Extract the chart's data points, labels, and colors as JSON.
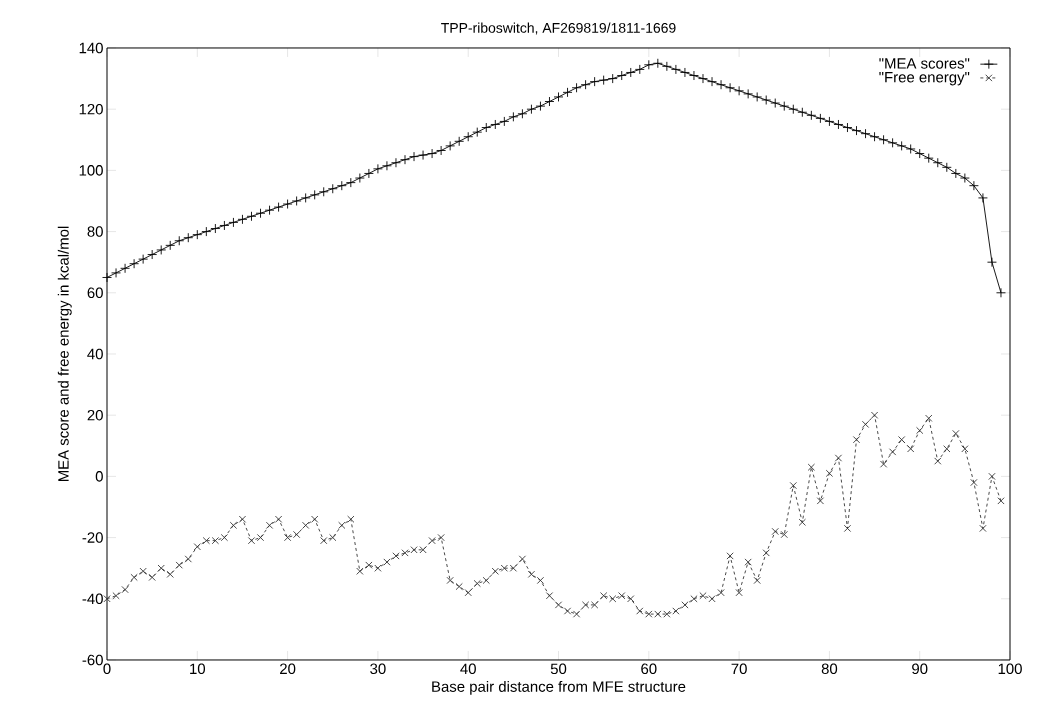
{
  "chart_data": {
    "type": "line",
    "title": "TPP-riboswitch, AF269819/1811-1669",
    "xlabel": "Base pair distance from MFE structure",
    "ylabel": "MEA score and free energy in kcal/mol",
    "x": [
      0,
      1,
      2,
      3,
      4,
      5,
      6,
      7,
      8,
      9,
      10,
      11,
      12,
      13,
      14,
      15,
      16,
      17,
      18,
      19,
      20,
      21,
      22,
      23,
      24,
      25,
      26,
      27,
      28,
      29,
      30,
      31,
      32,
      33,
      34,
      35,
      36,
      37,
      38,
      39,
      40,
      41,
      42,
      43,
      44,
      45,
      46,
      47,
      48,
      49,
      50,
      51,
      52,
      53,
      54,
      55,
      56,
      57,
      58,
      59,
      60,
      61,
      62,
      63,
      64,
      65,
      66,
      67,
      68,
      69,
      70,
      71,
      72,
      73,
      74,
      75,
      76,
      77,
      78,
      79,
      80,
      81,
      82,
      83,
      84,
      85,
      86,
      87,
      88,
      89,
      90,
      91,
      92,
      93,
      94,
      95,
      96,
      97,
      98,
      99
    ],
    "series": [
      {
        "name": "\"MEA scores\"",
        "color": "#000000",
        "marker": "plus",
        "line_style": "solid",
        "values": [
          65,
          66.5,
          68,
          69.5,
          71,
          72.5,
          74,
          75.5,
          77,
          78,
          79,
          80,
          81,
          82,
          83,
          84,
          85,
          86,
          87,
          88,
          89,
          90,
          91,
          92,
          93,
          94,
          95,
          96,
          97.5,
          99,
          100.5,
          101.5,
          102.5,
          103.5,
          104.5,
          105,
          105.5,
          106.5,
          108,
          109.5,
          111,
          112.5,
          114,
          115,
          116,
          117.5,
          118.5,
          120,
          121,
          122.5,
          124,
          125.5,
          127,
          128,
          129,
          129.5,
          130,
          131,
          132,
          133,
          134.5,
          135,
          134,
          133,
          132,
          131,
          130,
          129,
          128,
          127,
          126,
          125,
          124,
          123,
          122,
          121,
          120,
          119,
          118,
          117,
          116,
          115,
          114,
          113,
          112,
          111,
          110,
          109,
          108,
          107,
          105.5,
          104,
          102.5,
          101,
          99,
          97.5,
          95,
          91,
          70,
          60
        ]
      },
      {
        "name": "\"Free energy\"",
        "color": "#333333",
        "marker": "cross",
        "line_style": "dashed",
        "values": [
          -40,
          -39,
          -37,
          -33,
          -31,
          -33,
          -30,
          -32,
          -29,
          -27,
          -23,
          -21,
          -21,
          -20,
          -16,
          -14,
          -21,
          -20,
          -16,
          -14,
          -20,
          -19,
          -16,
          -14,
          -21,
          -20,
          -16,
          -14,
          -31,
          -29,
          -30,
          -28,
          -26,
          -25,
          -24,
          -24,
          -21,
          -20,
          -34,
          -36,
          -38,
          -35,
          -34,
          -31,
          -30,
          -30,
          -27,
          -32,
          -34,
          -39,
          -42,
          -44,
          -45,
          -42,
          -42,
          -39,
          -40,
          -39,
          -40,
          -44,
          -45,
          -45,
          -45,
          -44,
          -42,
          -40,
          -39,
          -40,
          -38,
          -26,
          -38,
          -28,
          -34,
          -25,
          -18,
          -19,
          -3,
          -15,
          3,
          -8,
          1,
          6,
          -17,
          12,
          17,
          20,
          4,
          8,
          12,
          9,
          15,
          19,
          5,
          9,
          14,
          9,
          -2,
          -17,
          0,
          -8
        ]
      }
    ],
    "xlim": [
      0,
      100
    ],
    "ylim": [
      -60,
      140
    ],
    "xticks": [
      0,
      10,
      20,
      30,
      40,
      50,
      60,
      70,
      80,
      90,
      100
    ],
    "yticks": [
      -60,
      -40,
      -20,
      0,
      20,
      40,
      60,
      80,
      100,
      120,
      140
    ],
    "grid": false,
    "legend": "top right"
  }
}
